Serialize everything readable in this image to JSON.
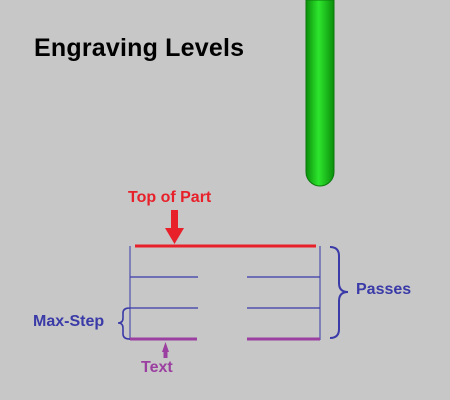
{
  "title": "Engraving Levels",
  "labels": {
    "top_of_part": "Top of Part",
    "passes": "Passes",
    "max_step": "Max-Step",
    "text": "Text"
  },
  "colors": {
    "background": "#c7c7c7",
    "tool": "#16c016",
    "top_line": "#e8202a",
    "pass_lines": "#3a3aa8",
    "text_line": "#9b3fa0"
  }
}
